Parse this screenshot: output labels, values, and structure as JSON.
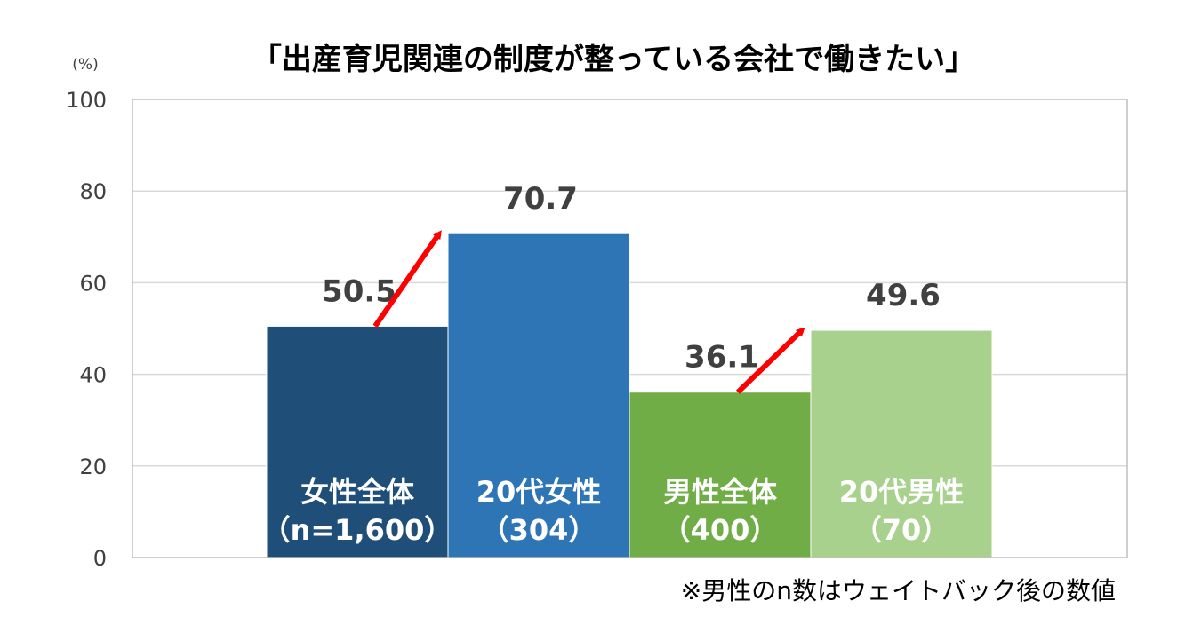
{
  "chart_data": {
    "type": "bar",
    "title": "「出産育児関連の制度が整っている会社で働きたい」",
    "unit_label": "(%)",
    "ylim": [
      0,
      100
    ],
    "yticks": [
      0,
      20,
      40,
      60,
      80,
      100
    ],
    "grid": true,
    "categories": [
      {
        "line1": "女性全体",
        "line2": "（n=1,600）"
      },
      {
        "line1": "20代女性",
        "line2": "（304）"
      },
      {
        "line1": "男性全体",
        "line2": "（400）"
      },
      {
        "line1": "20代男性",
        "line2": "（70）"
      }
    ],
    "values": [
      50.5,
      70.7,
      36.1,
      49.6
    ],
    "value_labels": [
      "50.5",
      "70.7",
      "36.1",
      "49.6"
    ],
    "colors": [
      "#1f4e79",
      "#2e75b6",
      "#70ad47",
      "#a9d18e"
    ],
    "annotations": [
      {
        "type": "arrow",
        "from_category": 0,
        "to_category": 1,
        "color": "#ff0000"
      },
      {
        "type": "arrow",
        "from_category": 2,
        "to_category": 3,
        "color": "#ff0000"
      }
    ],
    "footnote": "※男性のn数はウェイトバック後の数値"
  }
}
